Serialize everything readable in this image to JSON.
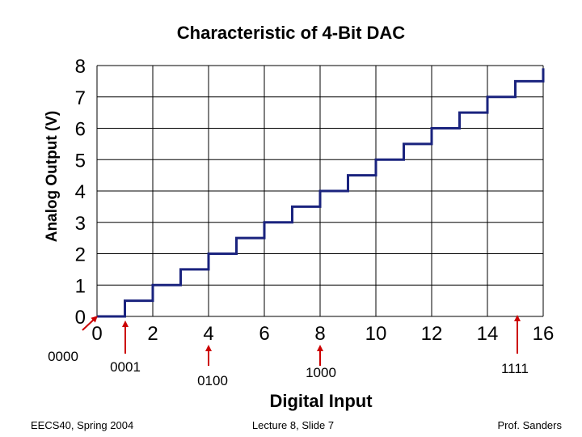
{
  "chart_data": {
    "type": "line",
    "title": "Characteristic of 4-Bit DAC",
    "xlabel": "Digital Input",
    "ylabel": "Analog Output (V)",
    "xlim": [
      0,
      16
    ],
    "ylim": [
      0,
      8
    ],
    "x_ticks": [
      "0",
      "2",
      "4",
      "6",
      "8",
      "10",
      "12",
      "14",
      "16"
    ],
    "y_ticks": [
      "0",
      "1",
      "2",
      "3",
      "4",
      "5",
      "6",
      "7",
      "8"
    ],
    "grid": true,
    "step_width": 1,
    "series": [
      {
        "values": [
          0,
          0.5,
          1,
          1.5,
          2,
          2.5,
          3,
          3.5,
          4,
          4.5,
          5,
          5.5,
          6,
          6.5,
          7,
          7.5
        ]
      }
    ],
    "series_color": "#1a237e",
    "annotation_color": "#cc0000",
    "annotations": [
      {
        "label": "0000",
        "x": 0
      },
      {
        "label": "0001",
        "x": 1
      },
      {
        "label": "0100",
        "x": 4
      },
      {
        "label": "1000",
        "x": 8
      },
      {
        "label": "1111",
        "x": 15
      }
    ]
  },
  "footer": {
    "left": "EECS40, Spring 2004",
    "center": "Lecture 8, Slide 7",
    "right": "Prof. Sanders"
  }
}
